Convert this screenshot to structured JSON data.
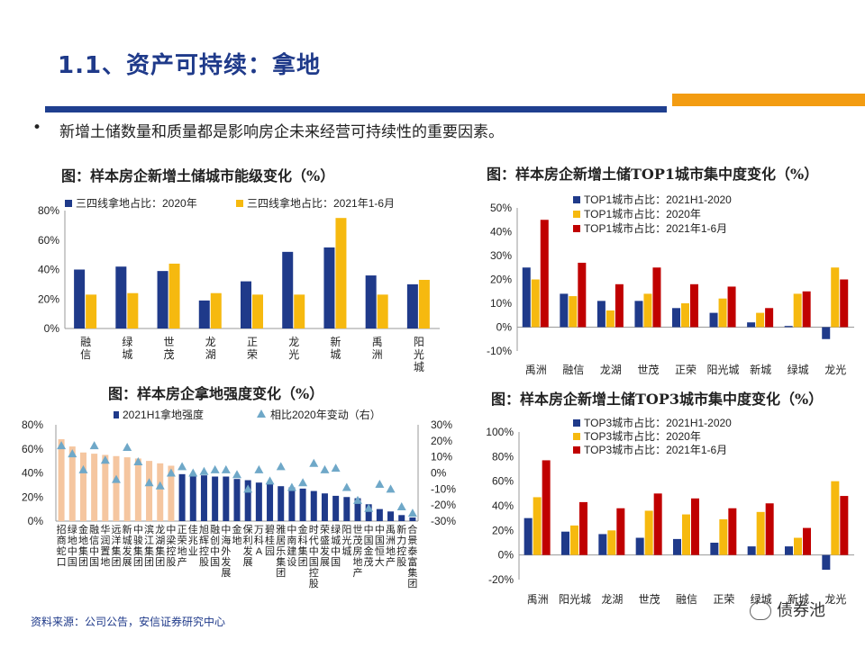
{
  "header": {
    "title": "1.1、资产可持续：拿地",
    "bullet_mark": "•",
    "bullet": "新增土储数量和质量都是影响房企未来经营可持续性的重要因素。"
  },
  "colors": {
    "navy": "#1f3a8a",
    "orange": "#f6b90f",
    "red": "#c00000",
    "peach": "#f5c6a0",
    "triangle": "#6fa8c8"
  },
  "chart_data": [
    {
      "type": "bar",
      "title": "图：样本房企新增土储城市能级变化（%）",
      "categories": [
        "融信",
        "绿城",
        "世茂",
        "龙湖",
        "正荣",
        "龙光",
        "新城",
        "禹洲",
        "阳光城"
      ],
      "series": [
        {
          "name": "三四线拿地占比：2020年",
          "values": [
            40,
            42,
            39,
            19,
            32,
            52,
            55,
            36,
            30
          ]
        },
        {
          "name": "三四线拿地占比：2021年1-6月",
          "values": [
            23,
            24,
            44,
            24,
            23,
            23,
            75,
            23,
            33
          ]
        }
      ],
      "yticks": [
        "0%",
        "20%",
        "40%",
        "60%",
        "80%"
      ],
      "ylim": [
        0,
        80
      ]
    },
    {
      "type": "bar",
      "title": "图：样本房企新增土储TOP1城市集中度变化（%）",
      "categories": [
        "禹洲",
        "融信",
        "龙湖",
        "世茂",
        "正荣",
        "阳光城",
        "新城",
        "绿城",
        "龙光"
      ],
      "series": [
        {
          "name": "TOP1城市占比：2021H1-2020",
          "values": [
            25,
            14,
            11,
            11,
            8,
            6,
            2,
            0.5,
            -5
          ]
        },
        {
          "name": "TOP1城市占比：2020年",
          "values": [
            20,
            13,
            7,
            14,
            10,
            12,
            6,
            14,
            25
          ]
        },
        {
          "name": "TOP1城市占比：2021年1-6月",
          "values": [
            45,
            27,
            18,
            25,
            18,
            17,
            8,
            15,
            20
          ]
        }
      ],
      "yticks": [
        "-10%",
        "0%",
        "10%",
        "20%",
        "30%",
        "40%",
        "50%"
      ],
      "ylim": [
        -10,
        50
      ]
    },
    {
      "type": "bar",
      "title": "图：样本房企拿地强度变化（%）",
      "categories": [
        "招商蛇口",
        "绿地中国",
        "金地集团",
        "融信中国",
        "华润置地",
        "远洋集团",
        "新城发展",
        "中骏集团",
        "滨江集团",
        "龙湖集团",
        "中梁控股",
        "正荣地产",
        "佳兆业",
        "旭辉控股",
        "融创中国",
        "中海外发展",
        "金地",
        "保利发展",
        "万科A",
        "碧桂园",
        "雅居乐集团",
        "中南建设",
        "金科集团",
        "时代中国控股",
        "荣盛发展",
        "绿城中国",
        "阳光城",
        "世茂房地产",
        "中国金茂",
        "中国恒大",
        "禹洲地产",
        "新力控股",
        "合景泰富集团"
      ],
      "series": [
        {
          "name": "2021H1拿地强度",
          "values": [
            68,
            62,
            57,
            56,
            55,
            54,
            53,
            52,
            50,
            48,
            46,
            39,
            39,
            38,
            37,
            37,
            35,
            34,
            32,
            31,
            29,
            28,
            27,
            25,
            23,
            21,
            20,
            19,
            14,
            10,
            8,
            5,
            3
          ]
        },
        {
          "name": "相比2020年变动（右）",
          "values": [
            17,
            12,
            2,
            17,
            8,
            -4,
            16,
            7,
            -6,
            -8,
            0,
            4,
            0,
            1,
            2,
            2,
            -1,
            -10,
            2,
            -5,
            4,
            -9,
            -6,
            6,
            2,
            3,
            -9,
            -17,
            -22,
            -7,
            -10,
            -21,
            -25
          ]
        }
      ],
      "yticks": [
        "0%",
        "20%",
        "40%",
        "60%",
        "80%"
      ],
      "y2ticks": [
        "-30%",
        "-20%",
        "-10%",
        "0%",
        "10%",
        "20%",
        "30%"
      ],
      "ylim": [
        0,
        80
      ],
      "y2lim": [
        -30,
        30
      ]
    },
    {
      "type": "bar",
      "title": "图：样本房企新增土储TOP3城市集中度变化（%）",
      "categories": [
        "禹洲",
        "阳光城",
        "龙湖",
        "世茂",
        "融信",
        "正荣",
        "绿城",
        "新城",
        "龙光"
      ],
      "series": [
        {
          "name": "TOP3城市占比：2021H1-2020",
          "values": [
            30,
            19,
            17,
            14,
            13,
            10,
            7,
            7,
            -12
          ]
        },
        {
          "name": "TOP3城市占比：2020年",
          "values": [
            47,
            24,
            20,
            36,
            33,
            29,
            35,
            14,
            60
          ]
        },
        {
          "name": "TOP3城市占比：2021年1-6月",
          "values": [
            77,
            43,
            38,
            50,
            46,
            38,
            42,
            22,
            48
          ]
        }
      ],
      "yticks": [
        "-20%",
        "0%",
        "20%",
        "40%",
        "60%",
        "80%",
        "100%"
      ],
      "ylim": [
        -20,
        100
      ]
    }
  ],
  "footer": {
    "source": "资料来源：公司公告，安信证券研究中心",
    "watermark": "债券池"
  }
}
